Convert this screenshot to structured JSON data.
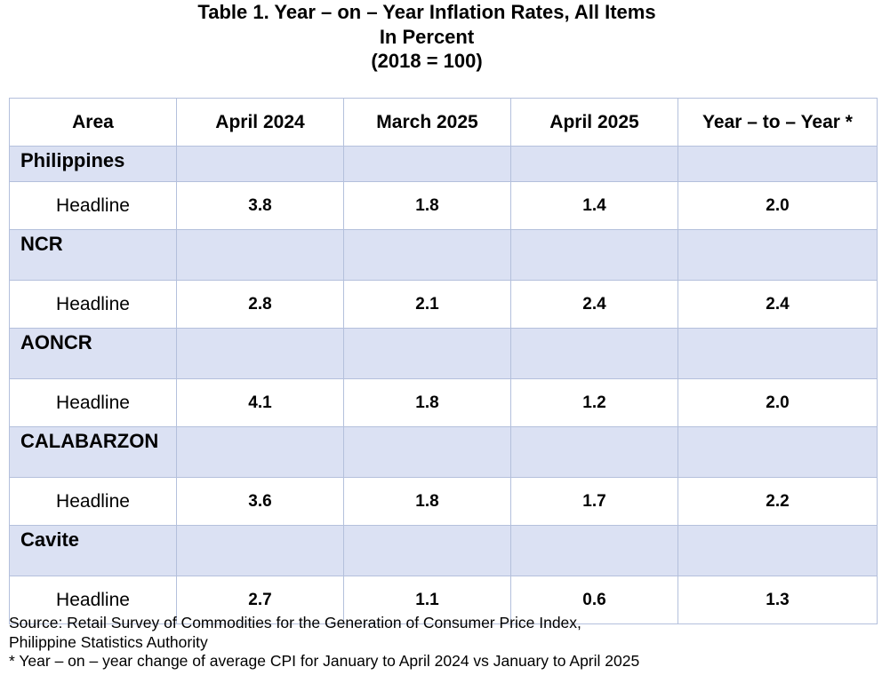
{
  "title": {
    "line1": "Table 1. Year – on – Year Inflation Rates, All Items",
    "line2": "In Percent",
    "line3": "(2018 = 100)"
  },
  "table": {
    "headers": [
      "Area",
      "April 2024",
      "March 2025",
      "April 2025",
      "Year – to – Year *"
    ],
    "groups": [
      {
        "area": "Philippines",
        "row_label": "Headline",
        "values": [
          "3.8",
          "1.8",
          "1.4",
          "2.0"
        ]
      },
      {
        "area": "NCR",
        "row_label": "Headline",
        "values": [
          "2.8",
          "2.1",
          "2.4",
          "2.4"
        ]
      },
      {
        "area": "AONCR",
        "row_label": "Headline",
        "values": [
          "4.1",
          "1.8",
          "1.2",
          "2.0"
        ]
      },
      {
        "area": "CALABARZON",
        "row_label": "Headline",
        "values": [
          "3.6",
          "1.8",
          "1.7",
          "2.2"
        ]
      },
      {
        "area": "Cavite",
        "row_label": "Headline",
        "values": [
          "2.7",
          "1.1",
          "0.6",
          "1.3"
        ]
      }
    ]
  },
  "footer": {
    "source_line1": "Source: Retail Survey of Commodities for the Generation of Consumer Price Index,",
    "source_line2": "Philippine Statistics Authority",
    "note": "* Year – on – year change of average CPI for January to April 2024 vs January to April 2025"
  },
  "colors": {
    "group_row_fill": "#dbe1f3",
    "grid_line": "#b4c0dc",
    "header_rule": "#8ea1d1"
  }
}
